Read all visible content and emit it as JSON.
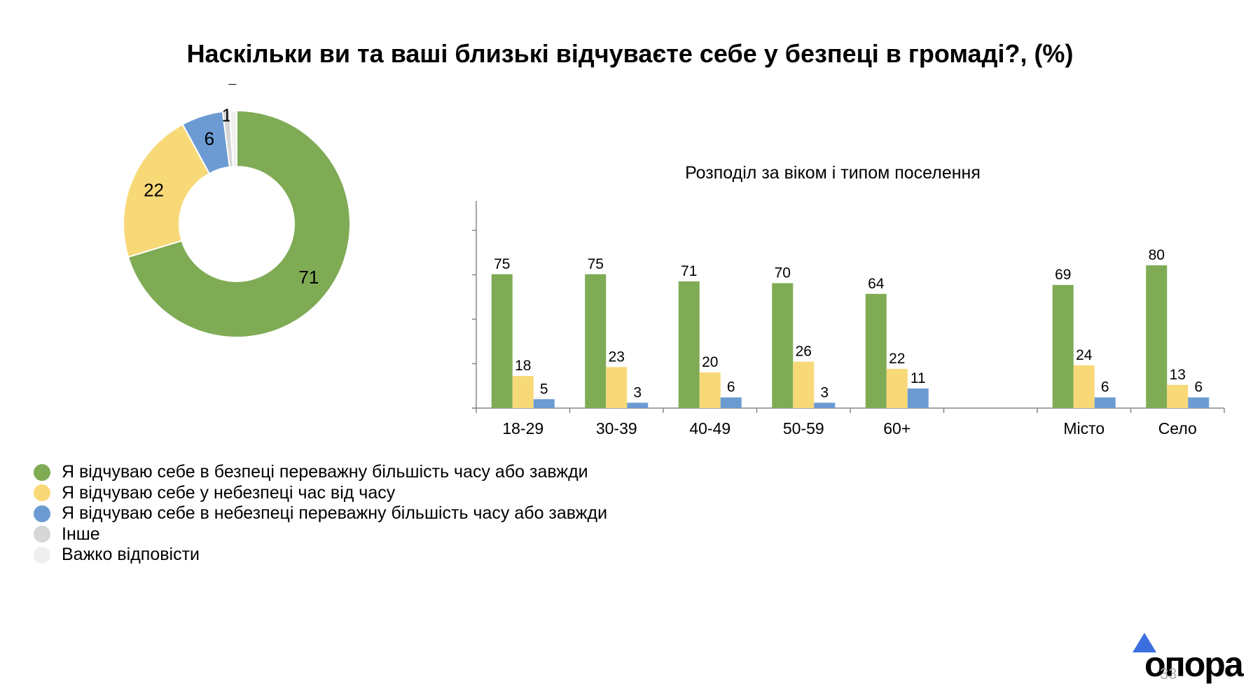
{
  "title": "Наскільки ви та ваші близькі відчуваєте себе у безпеці в громаді?, (%)",
  "colors": {
    "safe": "#7fab55",
    "sometimes": "#f8d978",
    "unsafe": "#6b9bd2",
    "other": "#d6d6d6",
    "hard": "#efefef"
  },
  "legend": [
    {
      "label": "Я відчуваю себе в безпеці переважну більшість часу або завжди",
      "color": "#7fab55"
    },
    {
      "label": "Я відчуваю себе у небезпеці час від часу",
      "color": "#f8d978"
    },
    {
      "label": "Я відчуваю себе в небезпеці переважну більшість часу або завжди",
      "color": "#6b9bd2"
    },
    {
      "label": "Інше",
      "color": "#d6d6d6"
    },
    {
      "label": "Важко відповісти",
      "color": "#efefef"
    }
  ],
  "logo": {
    "text": "опора",
    "icon": "triangle-icon"
  },
  "page_number": "33",
  "chart_data": [
    {
      "type": "pie",
      "donut": true,
      "labels": [
        "Я відчуваю себе в безпеці переважну більшість часу або завжди",
        "Я відчуваю себе у небезпеці час від часу",
        "Я відчуваю себе в небезпеці переважну більшість часу або завжди",
        "Інше",
        "Важко відповісти"
      ],
      "values": [
        71,
        22,
        6,
        1,
        1
      ],
      "colors": [
        "#7fab55",
        "#f8d978",
        "#6b9bd2",
        "#d6d6d6",
        "#efefef"
      ]
    },
    {
      "type": "bar",
      "title": "Розподіл за віком і типом поселення",
      "categories": [
        "18-29",
        "30-39",
        "40-49",
        "50-59",
        "60+",
        "",
        "Місто",
        "Село"
      ],
      "series": [
        {
          "name": "Я відчуваю себе в безпеці переважну більшість часу або завжди",
          "values": [
            75,
            75,
            71,
            70,
            64,
            null,
            69,
            80
          ],
          "color": "#7fab55"
        },
        {
          "name": "Я відчуваю себе у небезпеці час від часу",
          "values": [
            18,
            23,
            20,
            26,
            22,
            null,
            24,
            13
          ],
          "color": "#f8d978"
        },
        {
          "name": "Я відчуваю себе в небезпеці переважну більшість часу або завжди",
          "values": [
            5,
            3,
            6,
            3,
            11,
            null,
            6,
            6
          ],
          "color": "#6b9bd2"
        }
      ],
      "ylim": [
        0,
        100
      ],
      "grid": false
    }
  ]
}
